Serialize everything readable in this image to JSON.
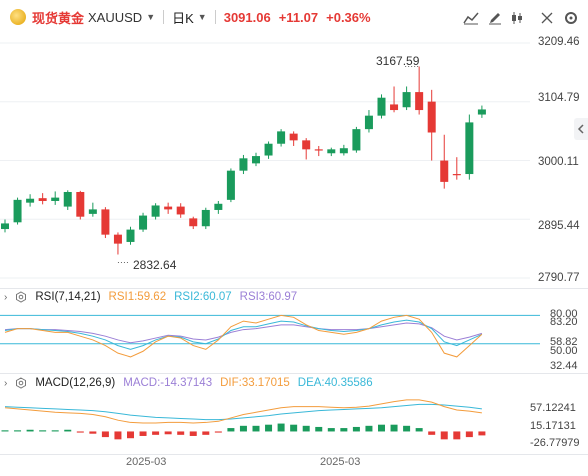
{
  "header": {
    "instrument_name": "现货黄金",
    "symbol": "XAUUSD",
    "timeframe": "日K",
    "last_price": "3091.06",
    "change": "+11.07",
    "change_pct": "+0.36%"
  },
  "price_axis": [
    "3209.46",
    "3104.79",
    "3000.11",
    "2895.44",
    "2790.77"
  ],
  "annotations": {
    "high": "3167.59",
    "low": "2832.64"
  },
  "rsi": {
    "label": "RSI(7,14,21)",
    "rsi1": "RSI1:59.62",
    "rsi2": "RSI2:60.07",
    "rsi3": "RSI3:60.97",
    "axis": [
      "80.00",
      "83.20",
      "58.82",
      "50.00",
      "32.44"
    ]
  },
  "macd": {
    "label": "MACD(12,26,9)",
    "macd": "MACD:-14.37143",
    "dif": "DIF:33.17015",
    "dea": "DEA:40.35586",
    "axis": [
      "57.12241",
      "15.17131",
      "-26.77979"
    ]
  },
  "dates": [
    "2025-03",
    "2025-03"
  ],
  "colors": {
    "up": "#1a9b5c",
    "down": "#e53935",
    "rsi1": "#f39c3c",
    "rsi2": "#39b8d8",
    "rsi3": "#9b7fd6",
    "dif": "#f39c3c",
    "dea": "#39b8d8"
  },
  "chart_data": {
    "type": "candlestick",
    "ylim": [
      2790.77,
      3209.46
    ],
    "candles": [
      {
        "o": 2878,
        "c": 2888,
        "h": 2895,
        "l": 2872
      },
      {
        "o": 2890,
        "c": 2930,
        "h": 2934,
        "l": 2886
      },
      {
        "o": 2925,
        "c": 2932,
        "h": 2940,
        "l": 2918
      },
      {
        "o": 2933,
        "c": 2928,
        "h": 2942,
        "l": 2922
      },
      {
        "o": 2928,
        "c": 2934,
        "h": 2945,
        "l": 2921
      },
      {
        "o": 2918,
        "c": 2944,
        "h": 2947,
        "l": 2912
      },
      {
        "o": 2944,
        "c": 2900,
        "h": 2946,
        "l": 2895
      },
      {
        "o": 2905,
        "c": 2913,
        "h": 2925,
        "l": 2900
      },
      {
        "o": 2913,
        "c": 2868,
        "h": 2917,
        "l": 2862
      },
      {
        "o": 2868,
        "c": 2852,
        "h": 2872,
        "l": 2832.64
      },
      {
        "o": 2855,
        "c": 2877,
        "h": 2882,
        "l": 2850
      },
      {
        "o": 2877,
        "c": 2902,
        "h": 2907,
        "l": 2873
      },
      {
        "o": 2900,
        "c": 2920,
        "h": 2924,
        "l": 2895
      },
      {
        "o": 2918,
        "c": 2913,
        "h": 2925,
        "l": 2905
      },
      {
        "o": 2918,
        "c": 2904,
        "h": 2924,
        "l": 2898
      },
      {
        "o": 2897,
        "c": 2883,
        "h": 2900,
        "l": 2878
      },
      {
        "o": 2883,
        "c": 2912,
        "h": 2916,
        "l": 2878
      },
      {
        "o": 2912,
        "c": 2923,
        "h": 2928,
        "l": 2905
      },
      {
        "o": 2930,
        "c": 2982,
        "h": 2986,
        "l": 2926
      },
      {
        "o": 2982,
        "c": 3004,
        "h": 3010,
        "l": 2976
      },
      {
        "o": 2995,
        "c": 3008,
        "h": 3014,
        "l": 2990
      },
      {
        "o": 3009,
        "c": 3030,
        "h": 3034,
        "l": 3003
      },
      {
        "o": 3030,
        "c": 3052,
        "h": 3056,
        "l": 3025
      },
      {
        "o": 3048,
        "c": 3036,
        "h": 3052,
        "l": 3026
      },
      {
        "o": 3036,
        "c": 3020,
        "h": 3040,
        "l": 3002
      },
      {
        "o": 3020,
        "c": 3018,
        "h": 3026,
        "l": 3008
      },
      {
        "o": 3013,
        "c": 3020,
        "h": 3023,
        "l": 3008
      },
      {
        "o": 3013,
        "c": 3022,
        "h": 3028,
        "l": 3009
      },
      {
        "o": 3018,
        "c": 3056,
        "h": 3060,
        "l": 3014
      },
      {
        "o": 3056,
        "c": 3080,
        "h": 3090,
        "l": 3050
      },
      {
        "o": 3080,
        "c": 3112,
        "h": 3118,
        "l": 3075
      },
      {
        "o": 3100,
        "c": 3090,
        "h": 3132,
        "l": 3086
      },
      {
        "o": 3095,
        "c": 3122,
        "h": 3132,
        "l": 3090
      },
      {
        "o": 3122,
        "c": 3090,
        "h": 3167.59,
        "l": 3082
      },
      {
        "o": 3105,
        "c": 3050,
        "h": 3126,
        "l": 3000
      },
      {
        "o": 3000,
        "c": 2962,
        "h": 3046,
        "l": 2950
      },
      {
        "o": 2976,
        "c": 2974,
        "h": 3006,
        "l": 2966
      },
      {
        "o": 2976,
        "c": 3068,
        "h": 3082,
        "l": 2966
      },
      {
        "o": 3082,
        "c": 3091.06,
        "h": 3098,
        "l": 3076
      }
    ]
  }
}
